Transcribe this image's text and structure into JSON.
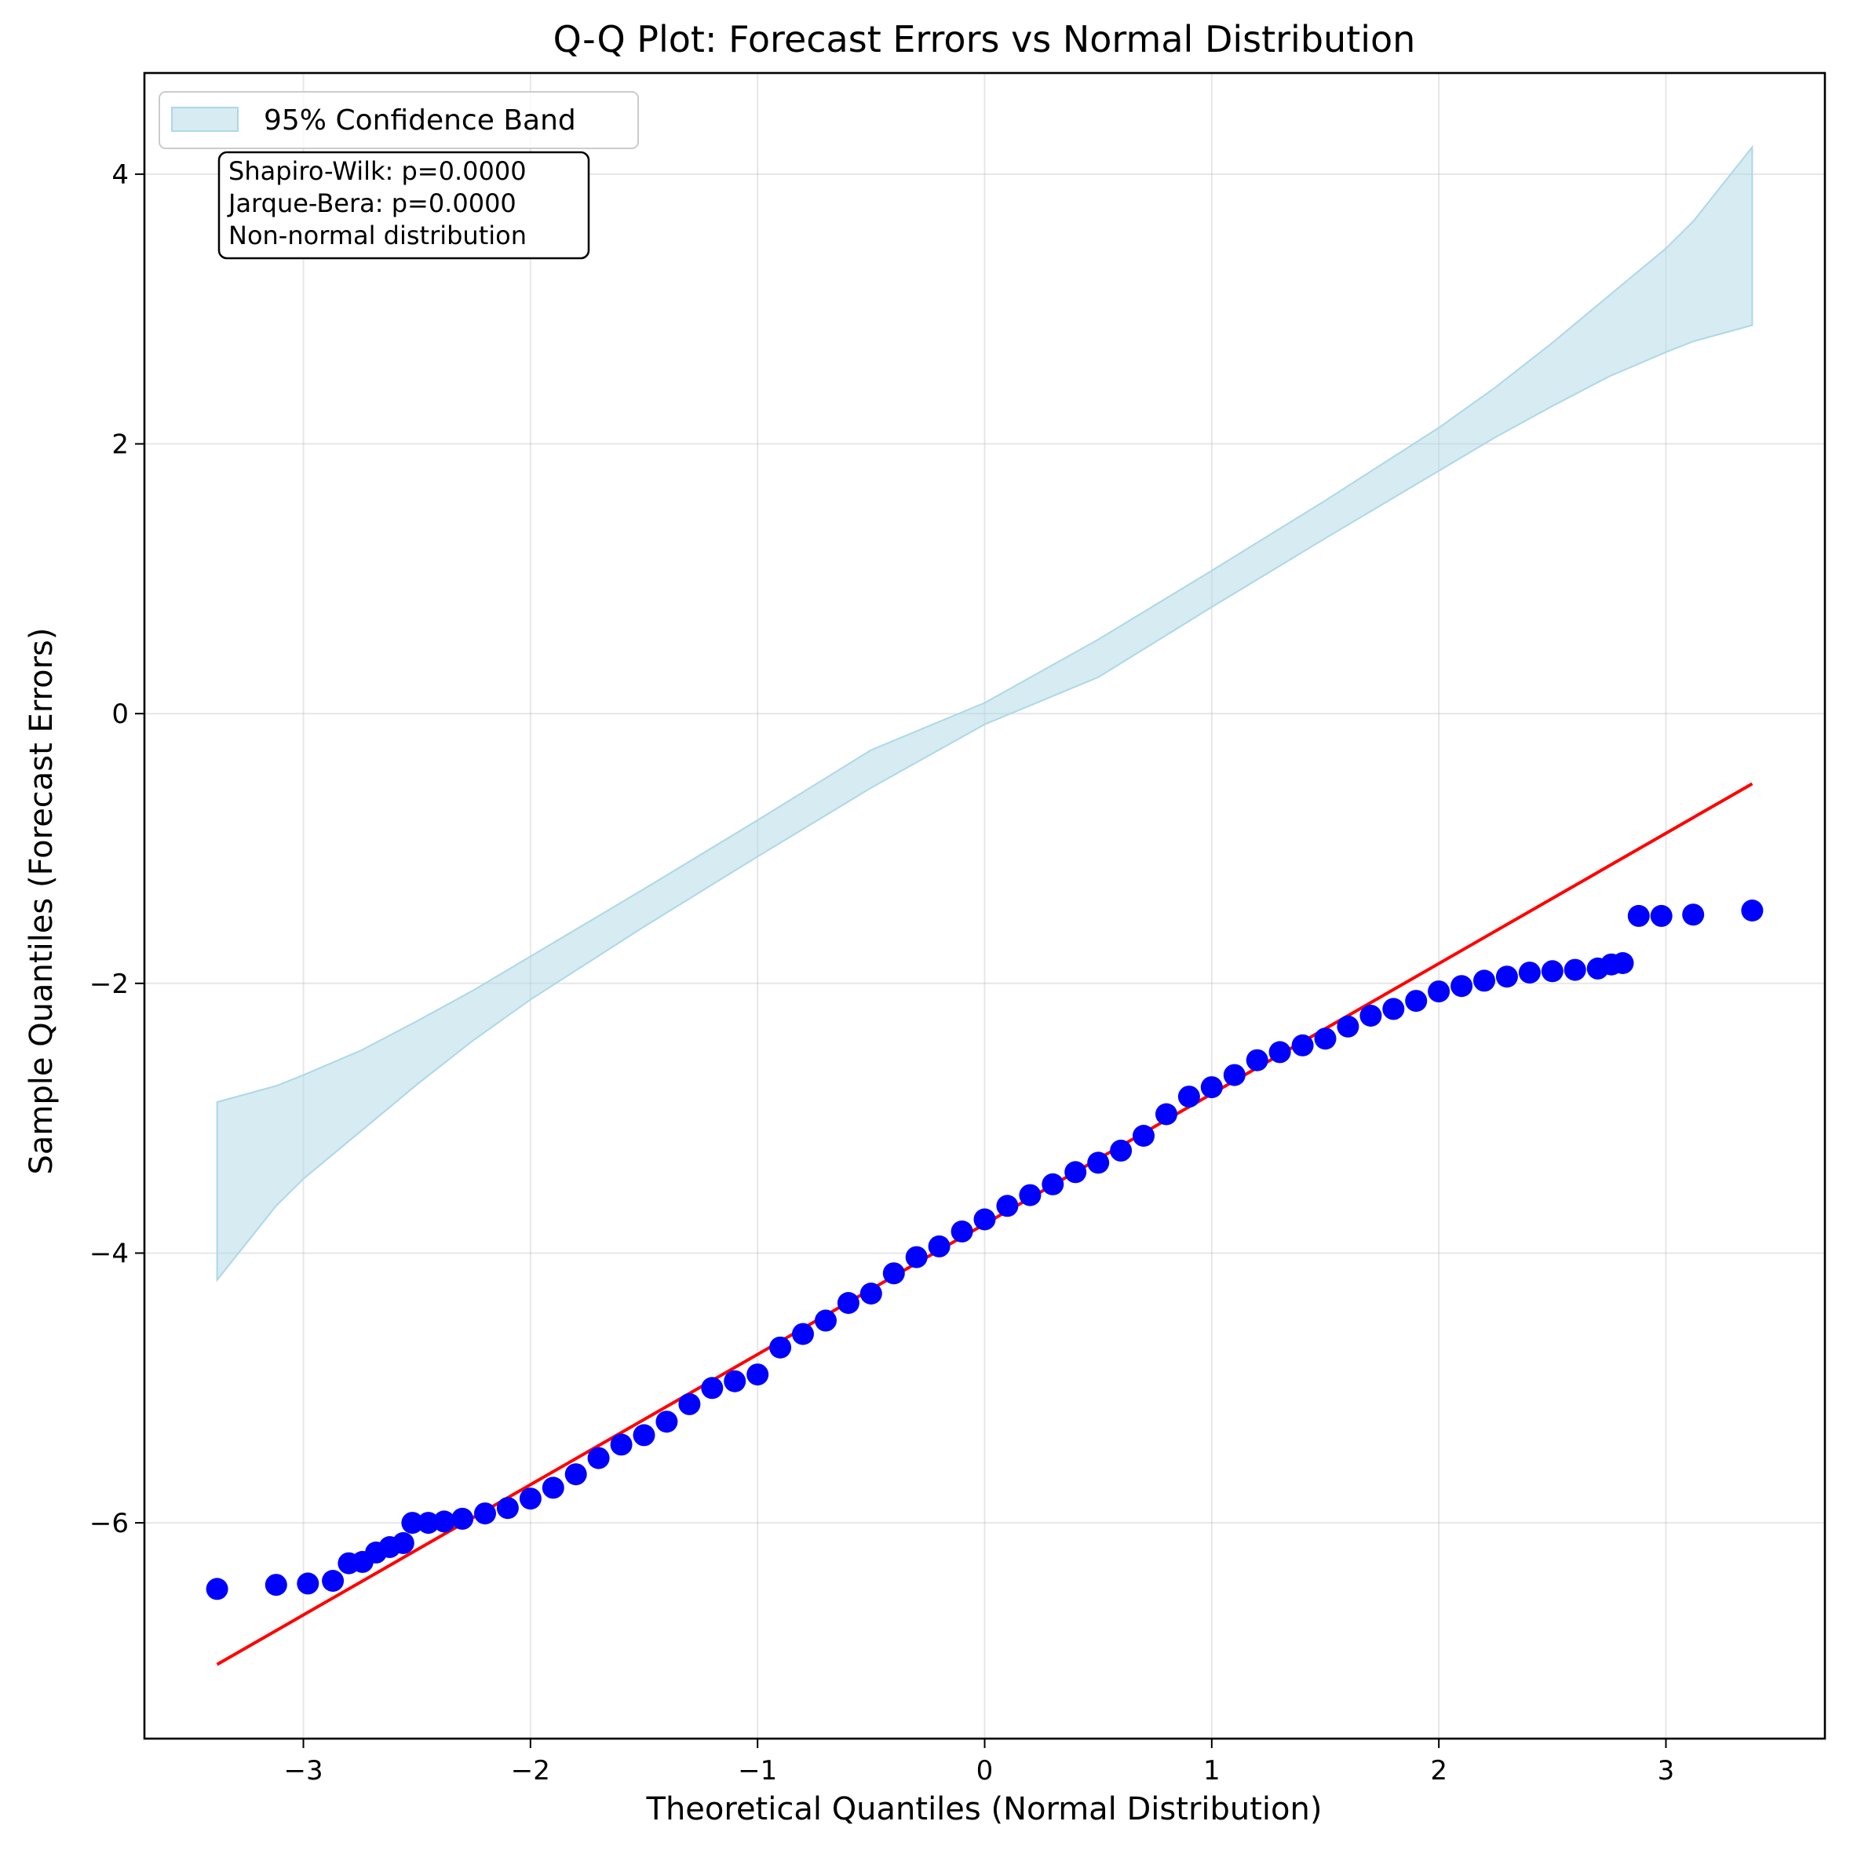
{
  "chart_data": {
    "type": "scatter",
    "title": "Q-Q Plot: Forecast Errors vs Normal Distribution",
    "xlabel": "Theoretical Quantiles (Normal Distribution)",
    "ylabel": "Sample Quantiles (Forecast Errors)",
    "xlim": [
      -3.7,
      3.7
    ],
    "ylim": [
      -7.6,
      4.75
    ],
    "grid": true,
    "x_ticks": [
      -3,
      -2,
      -1,
      0,
      1,
      2,
      3
    ],
    "x_tick_labels": [
      "−3",
      "−2",
      "−1",
      "0",
      "1",
      "2",
      "3"
    ],
    "y_ticks": [
      -6,
      -4,
      -2,
      0,
      2,
      4
    ],
    "y_tick_labels": [
      "−6",
      "−4",
      "−2",
      "0",
      "2",
      "4"
    ],
    "legend": {
      "placement": "upper-left",
      "entries": [
        {
          "label": "95% Confidence Band",
          "color": "#add8e6"
        }
      ]
    },
    "annotation": {
      "lines": [
        "Shapiro-Wilk: p=0.0000",
        "Jarque-Bera: p=0.0000",
        "Non-normal distribution"
      ]
    },
    "reference_line": {
      "color": "#ff0000",
      "points": [
        [
          -3.38,
          -7.05
        ],
        [
          3.38,
          -0.52
        ]
      ]
    },
    "confidence_band": {
      "color": "#add8e6",
      "x": [
        -3.38,
        -3.12,
        -3.0,
        -2.75,
        -2.5,
        -2.25,
        -2.0,
        -1.5,
        -1.0,
        -0.5,
        0.0,
        0.5,
        1.0,
        1.5,
        2.0,
        2.25,
        2.5,
        2.75,
        3.0,
        3.12,
        3.38
      ],
      "upper": [
        -2.88,
        -2.76,
        -2.68,
        -2.5,
        -2.28,
        -2.05,
        -1.8,
        -1.3,
        -0.79,
        -0.27,
        0.08,
        0.55,
        1.06,
        1.58,
        2.12,
        2.42,
        2.75,
        3.1,
        3.45,
        3.65,
        4.2
      ],
      "lower": [
        -4.2,
        -3.65,
        -3.45,
        -3.1,
        -2.75,
        -2.42,
        -2.12,
        -1.58,
        -1.06,
        -0.55,
        -0.08,
        0.27,
        0.79,
        1.3,
        1.8,
        2.05,
        2.28,
        2.5,
        2.68,
        2.76,
        2.88
      ]
    },
    "series": [
      {
        "color": "#0000ff",
        "points": [
          [
            -3.38,
            -6.49
          ],
          [
            -3.12,
            -6.46
          ],
          [
            -2.98,
            -6.45
          ],
          [
            -2.87,
            -6.43
          ],
          [
            -2.8,
            -6.3
          ],
          [
            -2.74,
            -6.29
          ],
          [
            -2.68,
            -6.22
          ],
          [
            -2.62,
            -6.18
          ],
          [
            -2.56,
            -6.15
          ],
          [
            -2.52,
            -6.0
          ],
          [
            -2.45,
            -6.0
          ],
          [
            -2.38,
            -5.99
          ],
          [
            -2.3,
            -5.97
          ],
          [
            -2.2,
            -5.93
          ],
          [
            -2.1,
            -5.89
          ],
          [
            -2.0,
            -5.82
          ],
          [
            -1.9,
            -5.74
          ],
          [
            -1.8,
            -5.64
          ],
          [
            -1.7,
            -5.52
          ],
          [
            -1.6,
            -5.42
          ],
          [
            -1.5,
            -5.35
          ],
          [
            -1.4,
            -5.25
          ],
          [
            -1.3,
            -5.12
          ],
          [
            -1.2,
            -5.0
          ],
          [
            -1.1,
            -4.95
          ],
          [
            -1.0,
            -4.9
          ],
          [
            -0.9,
            -4.7
          ],
          [
            -0.8,
            -4.6
          ],
          [
            -0.7,
            -4.5
          ],
          [
            -0.6,
            -4.37
          ],
          [
            -0.5,
            -4.3
          ],
          [
            -0.4,
            -4.15
          ],
          [
            -0.3,
            -4.03
          ],
          [
            -0.2,
            -3.95
          ],
          [
            -0.1,
            -3.84
          ],
          [
            0.0,
            -3.75
          ],
          [
            0.1,
            -3.65
          ],
          [
            0.2,
            -3.57
          ],
          [
            0.3,
            -3.49
          ],
          [
            0.4,
            -3.4
          ],
          [
            0.5,
            -3.33
          ],
          [
            0.6,
            -3.24
          ],
          [
            0.7,
            -3.13
          ],
          [
            0.8,
            -2.97
          ],
          [
            0.9,
            -2.84
          ],
          [
            1.0,
            -2.77
          ],
          [
            1.1,
            -2.68
          ],
          [
            1.2,
            -2.57
          ],
          [
            1.3,
            -2.51
          ],
          [
            1.4,
            -2.46
          ],
          [
            1.5,
            -2.41
          ],
          [
            1.6,
            -2.32
          ],
          [
            1.7,
            -2.24
          ],
          [
            1.8,
            -2.19
          ],
          [
            1.9,
            -2.13
          ],
          [
            2.0,
            -2.06
          ],
          [
            2.1,
            -2.02
          ],
          [
            2.2,
            -1.98
          ],
          [
            2.3,
            -1.95
          ],
          [
            2.4,
            -1.92
          ],
          [
            2.5,
            -1.91
          ],
          [
            2.6,
            -1.9
          ],
          [
            2.7,
            -1.89
          ],
          [
            2.76,
            -1.86
          ],
          [
            2.81,
            -1.85
          ],
          [
            2.88,
            -1.5
          ],
          [
            2.98,
            -1.5
          ],
          [
            3.12,
            -1.49
          ],
          [
            3.38,
            -1.46
          ]
        ]
      }
    ]
  }
}
